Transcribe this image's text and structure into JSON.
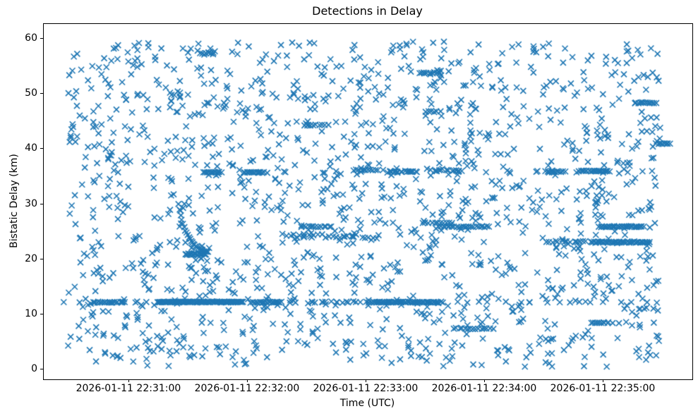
{
  "chart_data": {
    "type": "scatter",
    "title": "Detections in Delay",
    "xlabel": "Time (UTC)",
    "ylabel": "Bistatic Delay (km)",
    "grid": false,
    "legend": "none",
    "marker": {
      "symbol": "x",
      "color": "#1f77b4",
      "half_size_px": 4,
      "stroke_px": 1.6
    },
    "x_axis": {
      "kind": "time",
      "range_s": [
        0,
        328.2
      ],
      "tick_values_s": [
        43.2,
        103.2,
        163.2,
        223.2,
        283.2
      ],
      "tick_labels": [
        "2026-01-11 22:31:00",
        "2026-01-11 22:32:00",
        "2026-01-11 22:33:00",
        "2026-01-11 22:34:00",
        "2026-01-11 22:35:00"
      ]
    },
    "y_axis": {
      "range": [
        -1.8,
        62.7
      ],
      "tick_values": [
        0,
        10,
        20,
        30,
        40,
        50,
        60
      ],
      "tick_labels": [
        "0",
        "10",
        "20",
        "30",
        "40",
        "50",
        "60"
      ]
    },
    "points": {
      "background": {
        "count": 1500,
        "seed": 42,
        "t_range": [
          12,
          312
        ],
        "y_range": [
          0.5,
          59.5
        ]
      },
      "tracks": [
        {
          "y": 12.2,
          "t_start": 12,
          "t_end": 312,
          "spacing_s": 6.5,
          "t_jitter": 2.5,
          "y_jitter": 0.15
        },
        {
          "y": 12.2,
          "t_start": 25,
          "t_end": 42,
          "spacing_s": 0.9,
          "t_jitter": 0.4,
          "y_jitter": 0.12
        },
        {
          "y": 12.25,
          "t_start": 58,
          "t_end": 101,
          "spacing_s": 0.55,
          "t_jitter": 0.25,
          "y_jitter": 0.1
        },
        {
          "y": 12.2,
          "t_start": 106,
          "t_end": 121,
          "spacing_s": 0.8,
          "t_jitter": 0.35,
          "y_jitter": 0.12
        },
        {
          "y": 12.2,
          "t_start": 135,
          "t_end": 164,
          "spacing_s": 2.6,
          "t_jitter": 1.0,
          "y_jitter": 0.18
        },
        {
          "y": 12.2,
          "t_start": 166,
          "t_end": 200,
          "spacing_s": 0.7,
          "t_jitter": 0.3,
          "y_jitter": 0.12
        },
        {
          "y": 35.8,
          "t_start": 150,
          "t_end": 312,
          "spacing_s": 12,
          "t_jitter": 4,
          "y_jitter": 0.2
        },
        {
          "y": 35.8,
          "t_start": 81,
          "t_end": 90,
          "spacing_s": 0.8,
          "t_jitter": 0.3,
          "y_jitter": 0.1
        },
        {
          "y": 35.8,
          "t_start": 101,
          "t_end": 112,
          "spacing_s": 0.8,
          "t_jitter": 0.3,
          "y_jitter": 0.1
        },
        {
          "y": 36.2,
          "t_start": 157,
          "t_end": 169,
          "spacing_s": 1.2,
          "t_jitter": 0.5,
          "y_jitter": 0.15
        },
        {
          "y": 35.9,
          "t_start": 175,
          "t_end": 190,
          "spacing_s": 1.1,
          "t_jitter": 0.5,
          "y_jitter": 0.15
        },
        {
          "y": 36.1,
          "t_start": 196,
          "t_end": 214,
          "spacing_s": 1.8,
          "t_jitter": 0.7,
          "y_jitter": 0.2
        },
        {
          "y": 35.9,
          "t_start": 254,
          "t_end": 264,
          "spacing_s": 1.0,
          "t_jitter": 0.4,
          "y_jitter": 0.12
        },
        {
          "y": 36.0,
          "t_start": 271,
          "t_end": 287,
          "spacing_s": 0.8,
          "t_jitter": 0.35,
          "y_jitter": 0.12
        },
        {
          "y": 24.2,
          "t_start": 121,
          "t_end": 171,
          "spacing_s": 1.8,
          "t_jitter": 0.8,
          "y_jitter": 0.55
        },
        {
          "y": 25.9,
          "t_start": 130,
          "t_end": 146,
          "spacing_s": 1.3,
          "t_jitter": 0.5,
          "y_jitter": 0.15
        },
        {
          "y": 25.9,
          "t_start": 200,
          "t_end": 226,
          "spacing_s": 1.1,
          "t_jitter": 0.5,
          "y_jitter": 0.15
        },
        {
          "y": 25.9,
          "t_start": 281,
          "t_end": 304,
          "spacing_s": 0.8,
          "t_jitter": 0.35,
          "y_jitter": 0.12
        },
        {
          "y": 26.6,
          "t_start": 192,
          "t_end": 207,
          "spacing_s": 1.5,
          "t_jitter": 0.6,
          "y_jitter": 0.15
        },
        {
          "y": 23.2,
          "t_start": 254,
          "t_end": 275,
          "spacing_s": 1.6,
          "t_jitter": 0.7,
          "y_jitter": 0.25
        },
        {
          "y": 23.1,
          "t_start": 277,
          "t_end": 307,
          "spacing_s": 0.7,
          "t_jitter": 0.3,
          "y_jitter": 0.15
        },
        {
          "y": 20.9,
          "t_start": 72,
          "t_end": 82,
          "spacing_s": 0.5,
          "t_jitter": 0.25,
          "y_jitter": 0.25
        },
        {
          "y": 7.4,
          "t_start": 209,
          "t_end": 228,
          "spacing_s": 1.4,
          "t_jitter": 0.5,
          "y_jitter": 0.15
        },
        {
          "y": 8.5,
          "t_start": 277,
          "t_end": 286,
          "spacing_s": 1.0,
          "t_jitter": 0.4,
          "y_jitter": 0.12
        },
        {
          "y": 48.4,
          "t_start": 299,
          "t_end": 310,
          "spacing_s": 0.9,
          "t_jitter": 0.4,
          "y_jitter": 0.12
        },
        {
          "y": 53.8,
          "t_start": 190,
          "t_end": 201,
          "spacing_s": 1.3,
          "t_jitter": 0.5,
          "y_jitter": 0.15
        },
        {
          "y": 41.0,
          "t_start": 310,
          "t_end": 317,
          "spacing_s": 1.0,
          "t_jitter": 0.4,
          "y_jitter": 0.12
        },
        {
          "y": 57.3,
          "t_start": 79,
          "t_end": 86,
          "spacing_s": 1.1,
          "t_jitter": 0.4,
          "y_jitter": 0.2
        },
        {
          "y": 44.3,
          "t_start": 132,
          "t_end": 144,
          "spacing_s": 1.5,
          "t_jitter": 0.5,
          "y_jitter": 0.15
        },
        {
          "y": 46.8,
          "t_start": 193,
          "t_end": 201,
          "spacing_s": 1.5,
          "t_jitter": 0.5,
          "y_jitter": 0.15
        }
      ],
      "curve": {
        "t_start": 68,
        "t_end": 83,
        "y_start": 30.0,
        "y_end": 20.8,
        "tau_s": 5.0,
        "spacing_s": 0.6,
        "y_jitter": 0.15
      }
    }
  }
}
